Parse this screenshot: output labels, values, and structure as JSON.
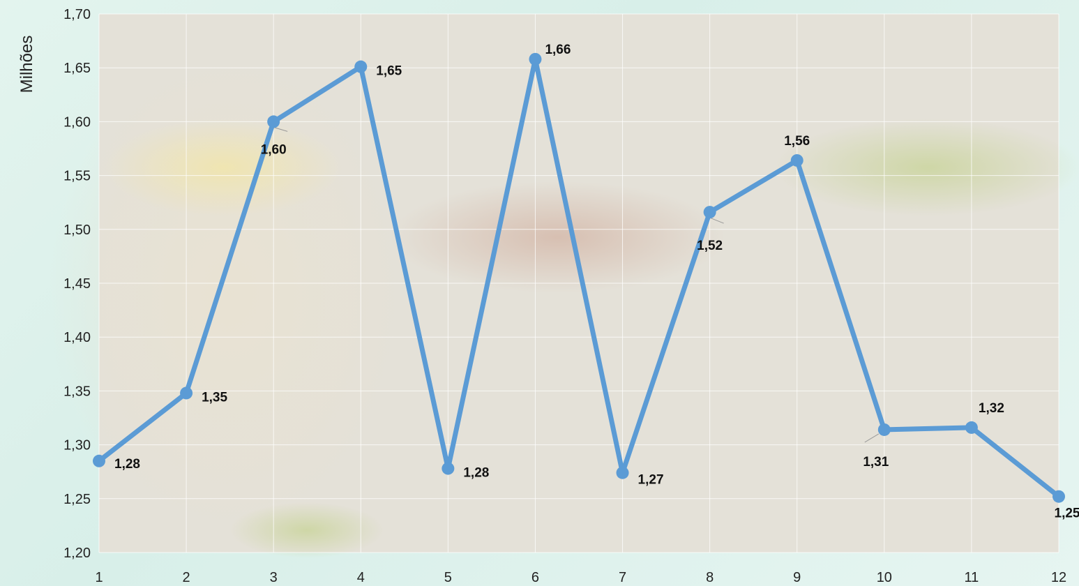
{
  "chart_data": {
    "type": "line",
    "ylabel": "Milhões",
    "x": [
      "1",
      "2",
      "3",
      "4",
      "5",
      "6",
      "7",
      "8",
      "9",
      "10",
      "11",
      "12"
    ],
    "values": [
      1.285,
      1.348,
      1.6,
      1.651,
      1.278,
      1.658,
      1.274,
      1.516,
      1.564,
      1.314,
      1.316,
      1.252
    ],
    "data_labels": [
      "1,28",
      "1,35",
      "1,60",
      "1,65",
      "1,28",
      "1,66",
      "1,27",
      "1,52",
      "1,56",
      "1,31",
      "1,32",
      "1,25"
    ],
    "ylim": [
      1.2,
      1.7
    ],
    "yticks": [
      "1,20",
      "1,25",
      "1,30",
      "1,35",
      "1,40",
      "1,45",
      "1,50",
      "1,55",
      "1,60",
      "1,65",
      "1,70"
    ],
    "grid": "vertical and horizontal",
    "legend": "none",
    "line_color": "#5b9bd5"
  }
}
